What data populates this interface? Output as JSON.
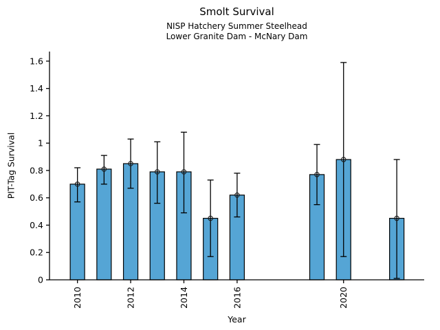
{
  "chart_data": {
    "type": "bar",
    "title": "Smolt Survival",
    "subtitle": [
      "NISP Hatchery Summer Steelhead",
      "Lower Granite Dam - McNary Dam"
    ],
    "xlabel": "Year",
    "ylabel": "PIT-Tag Survival",
    "x": [
      2010,
      2011,
      2012,
      2013,
      2014,
      2015,
      2016,
      2019,
      2020,
      2022
    ],
    "values": [
      0.7,
      0.81,
      0.85,
      0.79,
      0.79,
      0.45,
      0.62,
      0.77,
      0.88,
      0.45
    ],
    "error_low": [
      0.57,
      0.7,
      0.67,
      0.56,
      0.49,
      0.17,
      0.46,
      0.55,
      0.17,
      0.01
    ],
    "error_high": [
      0.82,
      0.91,
      1.03,
      1.01,
      1.08,
      0.73,
      0.78,
      0.99,
      1.59,
      0.88
    ],
    "xticks": [
      2010,
      2012,
      2014,
      2016,
      2020
    ],
    "yticks": [
      0,
      0.2,
      0.4,
      0.6,
      0.8,
      1,
      1.2,
      1.4,
      1.6
    ],
    "ytick_labels": [
      "0",
      "0.2",
      "0.4",
      "0.6",
      "0.8",
      "1",
      "1.2",
      "1.4",
      "1.6"
    ],
    "xlim": [
      2008.95,
      2023.03
    ],
    "ylim": [
      0,
      1.67
    ],
    "grid": false,
    "legend": "none",
    "marker": "open-circle",
    "bar_color": "#55a5d5",
    "bar_edge_color": "#000000",
    "error_color": "#000000",
    "axis_color": "#000000"
  }
}
